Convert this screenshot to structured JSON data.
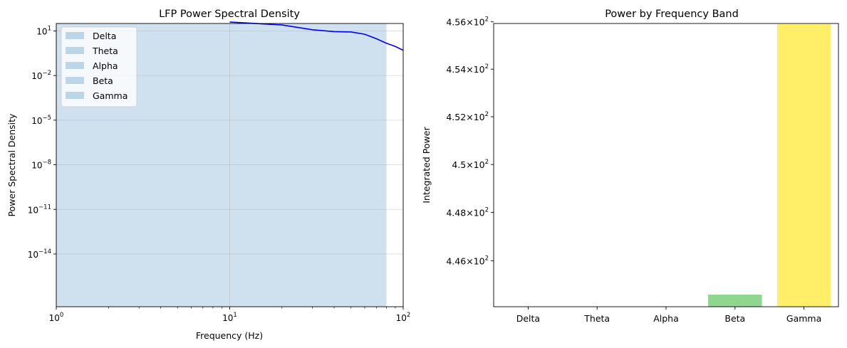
{
  "chart_data": [
    {
      "type": "line",
      "title": "LFP Power Spectral Density",
      "xlabel": "Frequency (Hz)",
      "ylabel": "Power Spectral Density",
      "xscale": "log",
      "yscale": "log",
      "xlim": [
        1,
        100
      ],
      "ylim": [
        1e-17,
        1000
      ],
      "grid": true,
      "legend_position": "top-left",
      "x_ticks": [
        {
          "base": "10",
          "exp": "0"
        },
        {
          "base": "10",
          "exp": "1"
        },
        {
          "base": "10",
          "exp": "2"
        }
      ],
      "y_ticks": [
        {
          "base": "10",
          "exp": "1"
        },
        {
          "base": "10",
          "exp": "−2"
        },
        {
          "base": "10",
          "exp": "−5"
        },
        {
          "base": "10",
          "exp": "−8"
        },
        {
          "base": "10",
          "exp": "−11"
        },
        {
          "base": "10",
          "exp": "−14"
        }
      ],
      "bands": [
        {
          "name": "Delta",
          "range": [
            1,
            80
          ],
          "color": "#bcd6e8"
        },
        {
          "name": "Theta",
          "range": [
            1,
            80
          ],
          "color": "#bcd6e8"
        },
        {
          "name": "Alpha",
          "range": [
            1,
            80
          ],
          "color": "#bcd6e8"
        },
        {
          "name": "Beta",
          "range": [
            1,
            80
          ],
          "color": "#bcd6e8"
        },
        {
          "name": "Gamma",
          "range": [
            1,
            80
          ],
          "color": "#bcd6e8"
        }
      ],
      "band_fill": "#cfe1ee",
      "series": [
        {
          "color": "#0000ff",
          "x": [
            10,
            20,
            30,
            40,
            50,
            60,
            70,
            80,
            90,
            100
          ],
          "y": [
            40,
            25,
            12,
            9,
            8.5,
            6,
            3,
            1.5,
            0.9,
            0.5
          ]
        }
      ]
    },
    {
      "type": "bar",
      "title": "Power by Frequency Band",
      "xlabel": "",
      "ylabel": "Integrated Power",
      "yscale": "log",
      "ylim": [
        444.1,
        456.6
      ],
      "grid": false,
      "categories": [
        "Delta",
        "Theta",
        "Alpha",
        "Beta",
        "Gamma"
      ],
      "values": [
        444.1,
        444.1,
        444.1,
        444.6,
        455.9
      ],
      "colors": [
        "#a6cee3",
        "#b9d39a",
        "#fdbf6f",
        "#8fd68f",
        "#feee68"
      ],
      "y_ticks": [
        {
          "value": 446,
          "mant": "4.46",
          "base": "10",
          "exp": "2"
        },
        {
          "value": 448,
          "mant": "4.48",
          "base": "10",
          "exp": "2"
        },
        {
          "value": 450,
          "mant": "4.5",
          "base": "10",
          "exp": "2"
        },
        {
          "value": 452,
          "mant": "4.52",
          "base": "10",
          "exp": "2"
        },
        {
          "value": 454,
          "mant": "4.54",
          "base": "10",
          "exp": "2"
        },
        {
          "value": 456,
          "mant": "4.56",
          "base": "10",
          "exp": "2"
        }
      ]
    }
  ]
}
